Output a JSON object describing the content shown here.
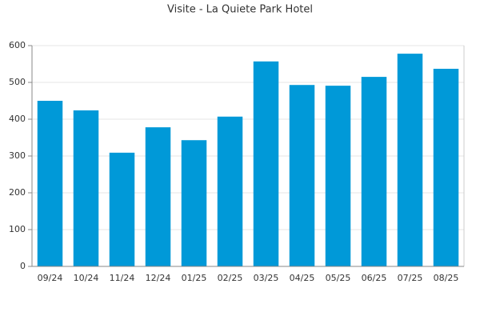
{
  "chart_data": {
    "type": "bar",
    "title": "Visite - La Quiete Park Hotel",
    "categories": [
      "09/24",
      "10/24",
      "11/24",
      "12/24",
      "01/25",
      "02/25",
      "03/25",
      "04/25",
      "05/25",
      "06/25",
      "07/25",
      "08/25"
    ],
    "values": [
      450,
      424,
      309,
      378,
      343,
      407,
      557,
      493,
      491,
      515,
      578,
      537
    ],
    "color": "#0099d8",
    "ylim": [
      0,
      600
    ],
    "yticks": [
      0,
      100,
      200,
      300,
      400,
      500,
      600
    ],
    "grid": true
  }
}
